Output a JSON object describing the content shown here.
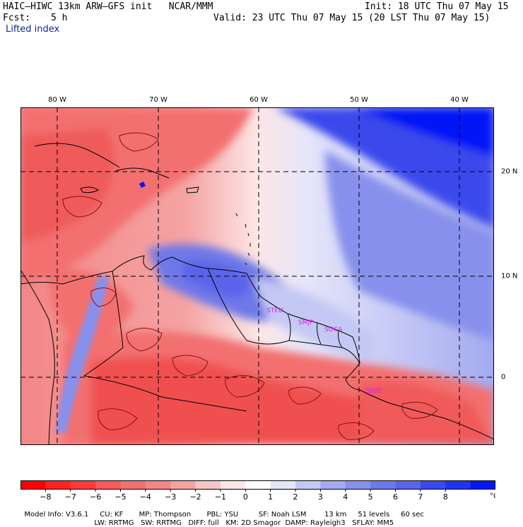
{
  "header": {
    "model_line": "HAIC–HIWC 13km ARW–GFS init   NCAR/MMM",
    "init_line": "Init: 18 UTC Thu 07 May 15",
    "fcst_label": "Fcst:",
    "fcst_value": "5 h",
    "valid_line": "Valid: 23 UTC Thu 07 May 15 (20 LST Thu 07 May 15)",
    "field_name": "Lifted index"
  },
  "map": {
    "lon_labels": [
      "80 W",
      "70 W",
      "60 W",
      "50 W",
      "40 W"
    ],
    "lat_labels": [
      "20 N",
      "10 N",
      "0"
    ],
    "stations": [
      "STEU",
      "SMJP",
      "SOCA",
      "SBBE"
    ],
    "colors": {
      "station_text": "#e020e0",
      "coast": "#000000",
      "contour": "#8a1010"
    }
  },
  "legend": {
    "ticks": [
      "−8",
      "−7",
      "−6",
      "−5",
      "−4",
      "−3",
      "−2",
      "−1",
      "0",
      "1",
      "2",
      "3",
      "4",
      "5",
      "6",
      "7",
      "8"
    ],
    "unit": "°C",
    "colors": [
      "#ff0000",
      "#ff2222",
      "#ff3b3b",
      "#f65a5a",
      "#f37070",
      "#f38787",
      "#f5a3a3",
      "#f9c4c4",
      "#fde6e6",
      "#ffffff",
      "#e6e6fa",
      "#c4c8f4",
      "#a3aaf0",
      "#8790ec",
      "#6f78e8",
      "#5a64ea",
      "#3b48ec",
      "#2233f0",
      "#0019f5"
    ]
  },
  "model_info": {
    "line1": [
      "Model Info: V3.6.1",
      "CU: KF",
      "MP: Thompson",
      "PBL: YSU",
      "SF: Noah LSM",
      "13 km",
      "51 levels",
      "60 sec"
    ],
    "line2": [
      "LW: RRTMG",
      "SW: RRTMG",
      "DIFF: full",
      "KM: 2D Smagor",
      "DAMP: Rayleigh3",
      "SFLAY: MM5"
    ]
  }
}
